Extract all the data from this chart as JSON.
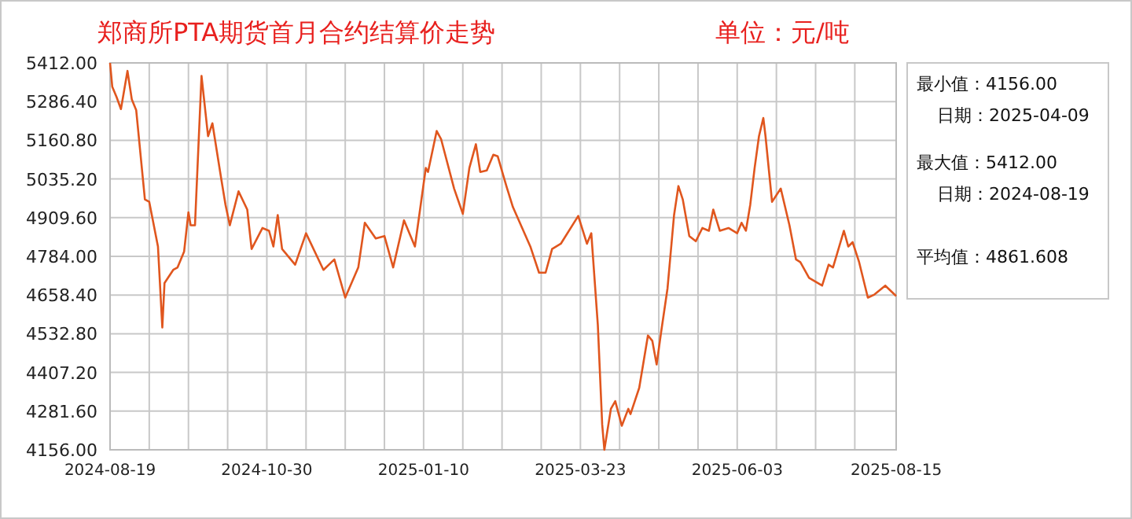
{
  "chart_data": {
    "type": "line",
    "title": "郑商所PTA期货首月合约结算价走势",
    "subtitle": "单位：元/吨",
    "annotations": [
      "最小值：4156.00",
      "日期：2025-04-09",
      "最大值：5412.00",
      "日期：2024-08-19",
      "平均值：4861.608"
    ],
    "color": "#e0561e",
    "grid": true,
    "xlim": [
      "2024-08-19",
      "2025-08-15"
    ],
    "ylim": [
      4156,
      5412
    ],
    "xticks": [
      {
        "value": "2024-08-19",
        "label": "2024-08-19"
      },
      {
        "value": "2024-09-06",
        "label": null
      },
      {
        "value": "2024-09-24",
        "label": null
      },
      {
        "value": "2024-10-12",
        "label": null
      },
      {
        "value": "2024-10-30",
        "label": "2024-10-30"
      },
      {
        "value": "2024-11-17",
        "label": null
      },
      {
        "value": "2024-12-05",
        "label": null
      },
      {
        "value": "2024-12-23",
        "label": null
      },
      {
        "value": "2025-01-10",
        "label": "2025-01-10"
      },
      {
        "value": "2025-01-28",
        "label": null
      },
      {
        "value": "2025-02-15",
        "label": null
      },
      {
        "value": "2025-03-05",
        "label": null
      },
      {
        "value": "2025-03-23",
        "label": "2025-03-23"
      },
      {
        "value": "2025-04-10",
        "label": null
      },
      {
        "value": "2025-04-28",
        "label": null
      },
      {
        "value": "2025-05-16",
        "label": null
      },
      {
        "value": "2025-06-03",
        "label": "2025-06-03"
      },
      {
        "value": "2025-06-21",
        "label": null
      },
      {
        "value": "2025-07-09",
        "label": null
      },
      {
        "value": "2025-07-27",
        "label": null
      },
      {
        "value": "2025-08-15",
        "label": "2025-08-15"
      }
    ],
    "yticks": [
      {
        "value": 4156,
        "label": "4156.00"
      },
      {
        "value": 4281.6,
        "label": "4281.60"
      },
      {
        "value": 4407.2,
        "label": "4407.20"
      },
      {
        "value": 4532.8,
        "label": "4532.80"
      },
      {
        "value": 4658.4,
        "label": "4658.40"
      },
      {
        "value": 4784,
        "label": "4784.00"
      },
      {
        "value": 4909.6,
        "label": "4909.60"
      },
      {
        "value": 5035.2,
        "label": "5035.20"
      },
      {
        "value": 5160.8,
        "label": "5160.80"
      },
      {
        "value": 5286.4,
        "label": "5286.40"
      },
      {
        "value": 5412,
        "label": "5412.00"
      }
    ],
    "x": [
      "2024-08-19",
      "2024-08-20",
      "2024-08-22",
      "2024-08-24",
      "2024-08-27",
      "2024-08-29",
      "2024-08-31",
      "2024-09-04",
      "2024-09-06",
      "2024-09-10",
      "2024-09-12",
      "2024-09-13",
      "2024-09-17",
      "2024-09-19",
      "2024-09-22",
      "2024-09-24",
      "2024-09-25",
      "2024-09-27",
      "2024-09-30",
      "2024-10-03",
      "2024-10-05",
      "2024-10-09",
      "2024-10-11",
      "2024-10-13",
      "2024-10-17",
      "2024-10-21",
      "2024-10-23",
      "2024-10-28",
      "2024-10-31",
      "2024-11-02",
      "2024-11-04",
      "2024-11-06",
      "2024-11-12",
      "2024-11-17",
      "2024-11-25",
      "2024-11-30",
      "2024-12-05",
      "2024-12-11",
      "2024-12-14",
      "2024-12-19",
      "2024-12-23",
      "2024-12-27",
      "2025-01-01",
      "2025-01-06",
      "2025-01-11",
      "2025-01-12",
      "2025-01-16",
      "2025-01-18",
      "2025-01-24",
      "2025-01-28",
      "2025-01-31",
      "2025-02-03",
      "2025-02-05",
      "2025-02-08",
      "2025-02-11",
      "2025-02-13",
      "2025-02-17",
      "2025-02-20",
      "2025-02-28",
      "2025-03-04",
      "2025-03-07",
      "2025-03-10",
      "2025-03-14",
      "2025-03-22",
      "2025-03-26",
      "2025-03-28",
      "2025-03-31",
      "2025-04-02",
      "2025-04-03",
      "2025-04-06",
      "2025-04-08",
      "2025-04-11",
      "2025-04-14",
      "2025-04-15",
      "2025-04-19",
      "2025-04-23",
      "2025-04-25",
      "2025-04-27",
      "2025-04-29",
      "2025-05-02",
      "2025-05-05",
      "2025-05-07",
      "2025-05-09",
      "2025-05-12",
      "2025-05-15",
      "2025-05-18",
      "2025-05-21",
      "2025-05-23",
      "2025-05-26",
      "2025-05-30",
      "2025-06-03",
      "2025-06-05",
      "2025-06-07",
      "2025-06-09",
      "2025-06-11",
      "2025-06-13",
      "2025-06-15",
      "2025-06-16",
      "2025-06-19",
      "2025-06-23",
      "2025-06-27",
      "2025-06-30",
      "2025-07-02",
      "2025-07-06",
      "2025-07-12",
      "2025-07-15",
      "2025-07-17",
      "2025-07-22",
      "2025-07-24",
      "2025-07-26",
      "2025-07-29",
      "2025-08-02",
      "2025-08-05",
      "2025-08-10",
      "2025-08-15"
    ],
    "values": [
      5412,
      5335,
      5301,
      5262,
      5386,
      5293,
      5259,
      4969,
      4961,
      4816,
      4553,
      4697,
      4740,
      4748,
      4799,
      4927,
      4885,
      4885,
      5370,
      5174,
      5216,
      5038,
      4952,
      4885,
      4995,
      4936,
      4808,
      4876,
      4867,
      4816,
      4918,
      4808,
      4757,
      4859,
      4740,
      4774,
      4650,
      4748,
      4893,
      4842,
      4850,
      4748,
      4901,
      4816,
      5071,
      5058,
      5191,
      5165,
      5004,
      4922,
      5071,
      5148,
      5058,
      5063,
      5114,
      5109,
      5012,
      4944,
      4816,
      4731,
      4731,
      4808,
      4825,
      4915,
      4825,
      4859,
      4561,
      4238,
      4156,
      4289,
      4314,
      4234,
      4289,
      4272,
      4357,
      4527,
      4510,
      4433,
      4535,
      4680,
      4918,
      5012,
      4969,
      4850,
      4833,
      4876,
      4867,
      4936,
      4867,
      4876,
      4859,
      4893,
      4867,
      4952,
      5071,
      5174,
      5233,
      5174,
      4961,
      5004,
      4885,
      4774,
      4765,
      4714,
      4689,
      4757,
      4748,
      4867,
      4816,
      4830,
      4765,
      4650,
      4660,
      4689,
      4655
    ]
  }
}
